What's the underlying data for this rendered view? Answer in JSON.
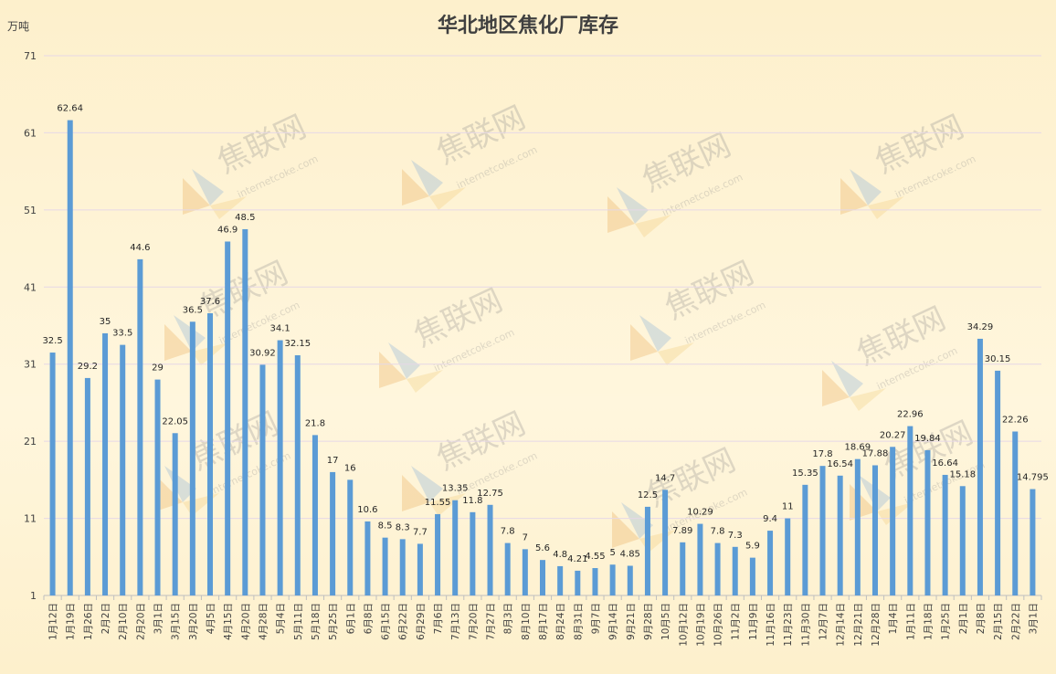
{
  "chart_data": {
    "type": "bar",
    "title": "华北地区焦化厂库存",
    "ylabel": "万吨",
    "xlabel": "",
    "ylim": [
      1,
      71
    ],
    "yticks": [
      1,
      11,
      21,
      31,
      41,
      51,
      61,
      71
    ],
    "grid": true,
    "bar_color": "#5b9bd5",
    "watermark_text": "焦联网",
    "watermark_subtext": "internetcoke.com",
    "categories": [
      "1月12日",
      "1月19日",
      "1月26日",
      "2月2日",
      "2月10日",
      "2月20日",
      "3月1日",
      "3月15日",
      "3月20日",
      "4月5日",
      "4月15日",
      "4月20日",
      "4月28日",
      "5月4日",
      "5月11日",
      "5月18日",
      "5月25日",
      "6月1日",
      "6月8日",
      "6月15日",
      "6月22日",
      "6月29日",
      "7月6日",
      "7月13日",
      "7月20日",
      "7月27日",
      "8月3日",
      "8月10日",
      "8月17日",
      "8月24日",
      "8月31日",
      "9月7日",
      "9月14日",
      "9月21日",
      "9月28日",
      "10月5日",
      "10月12日",
      "10月19日",
      "10月26日",
      "11月2日",
      "11月9日",
      "11月16日",
      "11月23日",
      "11月30日",
      "12月7日",
      "12月14日",
      "12月21日",
      "12月28日",
      "1月4日",
      "1月11日",
      "1月18日",
      "1月25日",
      "2月1日",
      "2月8日",
      "2月15日",
      "2月22日",
      "3月1日"
    ],
    "values": [
      32.5,
      62.64,
      29.2,
      35,
      33.5,
      44.6,
      29,
      22.05,
      36.5,
      37.6,
      46.9,
      48.5,
      30.92,
      34.1,
      32.15,
      21.8,
      17,
      16,
      10.6,
      8.5,
      8.3,
      7.7,
      11.55,
      13.35,
      11.8,
      12.75,
      7.8,
      7,
      5.6,
      4.8,
      4.21,
      4.55,
      5,
      4.85,
      12.5,
      14.7,
      7.89,
      10.29,
      7.8,
      7.3,
      5.9,
      9.4,
      11,
      15.35,
      17.8,
      16.54,
      18.69,
      17.88,
      20.27,
      22.96,
      19.84,
      16.64,
      15.18,
      34.29,
      30.15,
      22.26,
      14.795
    ],
    "labels": [
      "32.5",
      "62.64",
      "29.2",
      "35",
      "33.5",
      "44.6",
      "29",
      "22.05",
      "36.5",
      "37.6",
      "46.9",
      "48.5",
      "30.92",
      "34.1",
      "32.15",
      "21.8",
      "17",
      "16",
      "10.6",
      "8.5",
      "8.3",
      "7.7",
      "11.55",
      "13.35",
      "11.8",
      "12.75",
      "7.8",
      "7",
      "5.6",
      "4.8",
      "4.21",
      "4.55",
      "5",
      "4.85",
      "12.5",
      "14.7",
      "7.89",
      "10.29",
      "7.8",
      "7.3",
      "5.9",
      "9.4",
      "11",
      "15.35",
      "17.8",
      "16.54",
      "18.69",
      "17.88",
      "20.27",
      "22.96",
      "19.84",
      "16.64",
      "15.18",
      "34.29",
      "30.15",
      "22.26",
      "14.795"
    ]
  }
}
